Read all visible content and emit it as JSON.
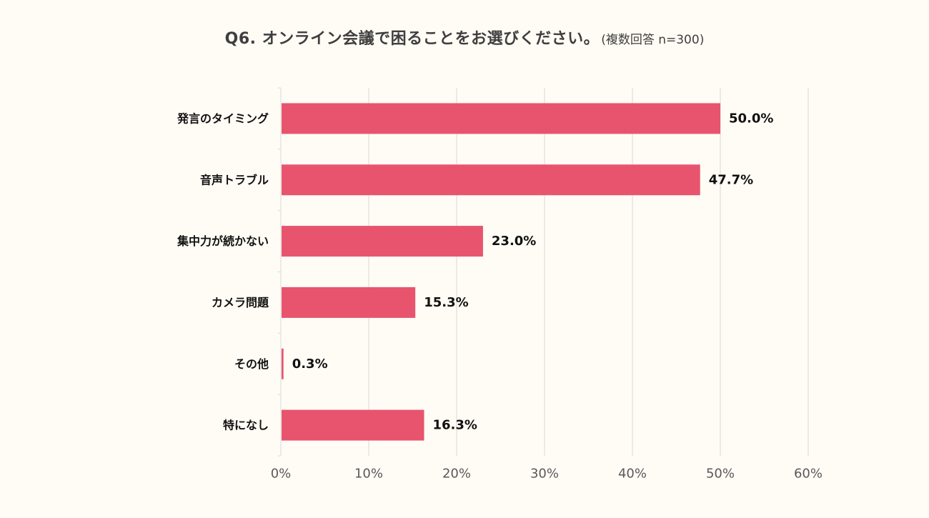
{
  "chart_data": {
    "type": "bar",
    "orientation": "horizontal",
    "title": "Q6. オンライン会議で困ることをお選びください。",
    "subtitle": "(複数回答 n=300)",
    "categories": [
      "発言のタイミング",
      "音声トラブル",
      "集中力が続かない",
      "カメラ問題",
      "その他",
      "特になし"
    ],
    "values": [
      50.0,
      47.7,
      23.0,
      15.3,
      0.3,
      16.3
    ],
    "value_labels": [
      "50.0%",
      "47.7%",
      "23.0%",
      "15.3%",
      "0.3%",
      "16.3%"
    ],
    "xlim": [
      0,
      60
    ],
    "x_ticks": [
      "0%",
      "10%",
      "20%",
      "30%",
      "40%",
      "50%",
      "60%"
    ],
    "x_tick_values": [
      0,
      10,
      20,
      30,
      40,
      50,
      60
    ],
    "xlabel": "",
    "ylabel": "",
    "grid": "vertical",
    "legend": "none",
    "bar_color": "#E8546E",
    "grid_color": "#D9D9D9",
    "background_color": "#FFFCF5"
  }
}
